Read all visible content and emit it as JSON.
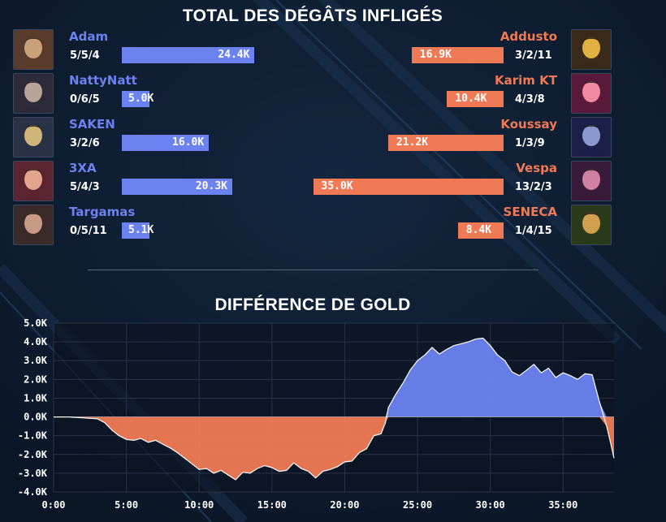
{
  "damage": {
    "title": "TOTAL DES DÉGÂTS INFLIGÉS",
    "colors": {
      "blue": "#6b82f0",
      "red": "#f07a55"
    },
    "blue_team": [
      {
        "name": "Adam",
        "kda": "5/5/4",
        "damage": 24.4,
        "label": "24.4K",
        "portrait": "champion-portrait"
      },
      {
        "name": "NattyNatt",
        "kda": "0/6/5",
        "damage": 5.0,
        "label": "5.0K",
        "portrait": "champion-portrait"
      },
      {
        "name": "SAKEN",
        "kda": "3/2/6",
        "damage": 16.0,
        "label": "16.0K",
        "portrait": "champion-portrait"
      },
      {
        "name": "3XA",
        "kda": "5/4/3",
        "damage": 20.3,
        "label": "20.3K",
        "portrait": "champion-portrait"
      },
      {
        "name": "Targamas",
        "kda": "0/5/11",
        "damage": 5.1,
        "label": "5.1K",
        "portrait": "champion-portrait"
      }
    ],
    "red_team": [
      {
        "name": "Addusto",
        "kda": "3/2/11",
        "damage": 16.9,
        "label": "16.9K",
        "portrait": "champion-portrait"
      },
      {
        "name": "Karim KT",
        "kda": "4/3/8",
        "damage": 10.4,
        "label": "10.4K",
        "portrait": "champion-portrait"
      },
      {
        "name": "Koussay",
        "kda": "1/3/9",
        "damage": 21.2,
        "label": "21.2K",
        "portrait": "champion-portrait"
      },
      {
        "name": "Vespa",
        "kda": "13/2/3",
        "damage": 35.0,
        "label": "35.0K",
        "portrait": "champion-portrait"
      },
      {
        "name": "SENECA",
        "kda": "1/4/15",
        "damage": 8.4,
        "label": "8.4K",
        "portrait": "champion-portrait"
      }
    ]
  },
  "chart_data": {
    "type": "area",
    "title": "DIFFÉRENCE DE GOLD",
    "x_ticks": [
      "0:00",
      "5:00",
      "10:00",
      "15:00",
      "20:00",
      "25:00",
      "30:00",
      "35:00"
    ],
    "y_ticks": [
      "5.0K",
      "4.0K",
      "3.0K",
      "2.0K",
      "1.0K",
      "0.0K",
      "-1.0K",
      "-2.0K",
      "-3.0K",
      "-4.0K"
    ],
    "ylim": [
      -4.0,
      5.0
    ],
    "xlim": [
      0,
      38.5
    ],
    "grid": true,
    "positive_color": "#6b82f0",
    "negative_color": "#f07a55",
    "series": [
      {
        "values_units": "thousands of gold vs. minutes",
        "x": [
          0,
          1,
          2,
          3,
          3.5,
          4,
          4.5,
          5,
          5.5,
          6,
          6.5,
          7,
          7.5,
          8,
          8.5,
          9,
          9.5,
          10,
          10.5,
          11,
          11.5,
          12,
          12.5,
          13,
          13.5,
          14,
          14.5,
          15,
          15.5,
          16,
          16.5,
          17,
          17.5,
          18,
          18.5,
          19,
          19.5,
          20,
          20.5,
          21,
          21.5,
          22,
          22.5,
          22.8,
          23,
          23.5,
          24,
          24.5,
          25,
          25.5,
          26,
          26.5,
          27,
          27.5,
          28,
          28.5,
          29,
          29.5,
          30,
          30.5,
          31,
          31.5,
          32,
          32.5,
          33,
          33.5,
          34,
          34.5,
          35,
          35.5,
          36,
          36.5,
          37,
          37.5,
          38,
          38.3,
          38.5
        ],
        "y": [
          0,
          0,
          -0.05,
          -0.1,
          -0.3,
          -0.7,
          -1.0,
          -1.2,
          -1.25,
          -1.15,
          -1.35,
          -1.25,
          -1.45,
          -1.65,
          -1.9,
          -2.2,
          -2.5,
          -2.8,
          -2.75,
          -3.0,
          -2.85,
          -3.1,
          -3.35,
          -2.95,
          -3.0,
          -2.75,
          -2.6,
          -2.7,
          -2.9,
          -2.85,
          -2.45,
          -2.75,
          -2.9,
          -3.25,
          -2.9,
          -2.8,
          -2.65,
          -2.4,
          -2.35,
          -1.9,
          -1.7,
          -1.0,
          -0.9,
          -0.3,
          0.5,
          1.2,
          1.8,
          2.5,
          3.0,
          3.3,
          3.7,
          3.35,
          3.6,
          3.8,
          3.9,
          4.0,
          4.15,
          4.2,
          3.8,
          3.3,
          3.0,
          2.4,
          2.2,
          2.5,
          2.8,
          2.35,
          2.6,
          2.1,
          2.35,
          2.2,
          2.0,
          2.3,
          2.25,
          0.8,
          -0.5,
          -1.5,
          -2.2
        ]
      }
    ]
  }
}
